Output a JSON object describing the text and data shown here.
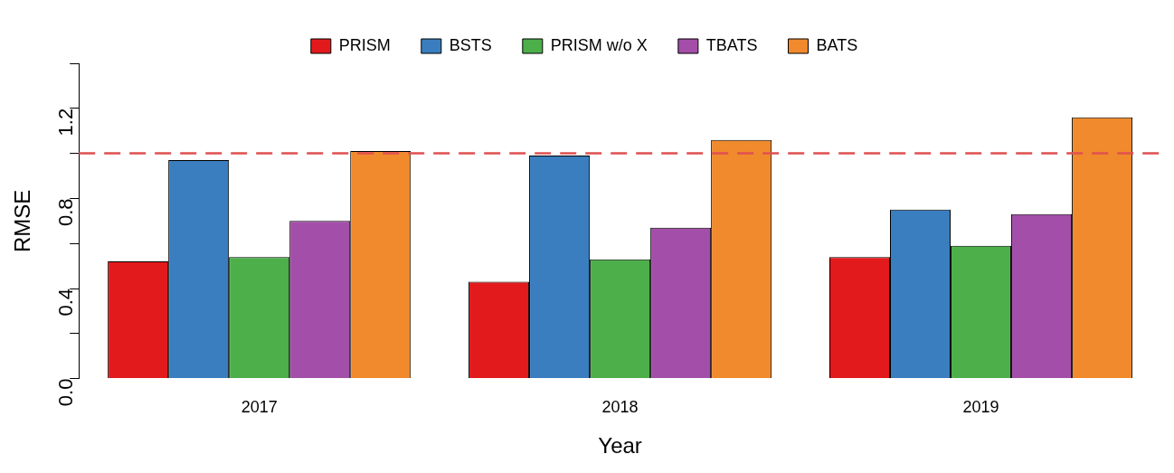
{
  "chart_data": {
    "type": "bar",
    "xlabel": "Year",
    "ylabel": "RMSE",
    "categories": [
      "2017",
      "2018",
      "2019"
    ],
    "series": [
      {
        "name": "PRISM",
        "color": "#e31a1c",
        "values": [
          0.52,
          0.43,
          0.54
        ]
      },
      {
        "name": "BSTS",
        "color": "#3a7ebf",
        "values": [
          0.97,
          0.99,
          0.75
        ]
      },
      {
        "name": "PRISM w/o X",
        "color": "#4daf4a",
        "values": [
          0.54,
          0.53,
          0.59
        ]
      },
      {
        "name": "TBATS",
        "color": "#a34ea8",
        "values": [
          0.7,
          0.67,
          0.73
        ]
      },
      {
        "name": "BATS",
        "color": "#f08a2c",
        "values": [
          1.01,
          1.06,
          1.16
        ]
      }
    ],
    "ylim": [
      0,
      1.4
    ],
    "yticks": [
      {
        "value": 0,
        "label": "0.0"
      },
      {
        "value": 0.2,
        "label": null
      },
      {
        "value": 0.4,
        "label": "0.4"
      },
      {
        "value": 0.6,
        "label": null
      },
      {
        "value": 0.8,
        "label": "0.8"
      },
      {
        "value": 1.0,
        "label": null
      },
      {
        "value": 1.2,
        "label": "1.2"
      },
      {
        "value": 1.4,
        "label": null
      }
    ],
    "ref_lines": [
      {
        "axis": "y",
        "value": 1.0,
        "color": "#e05050",
        "line_style": "dashed"
      }
    ],
    "legend": "top",
    "grid": false
  }
}
